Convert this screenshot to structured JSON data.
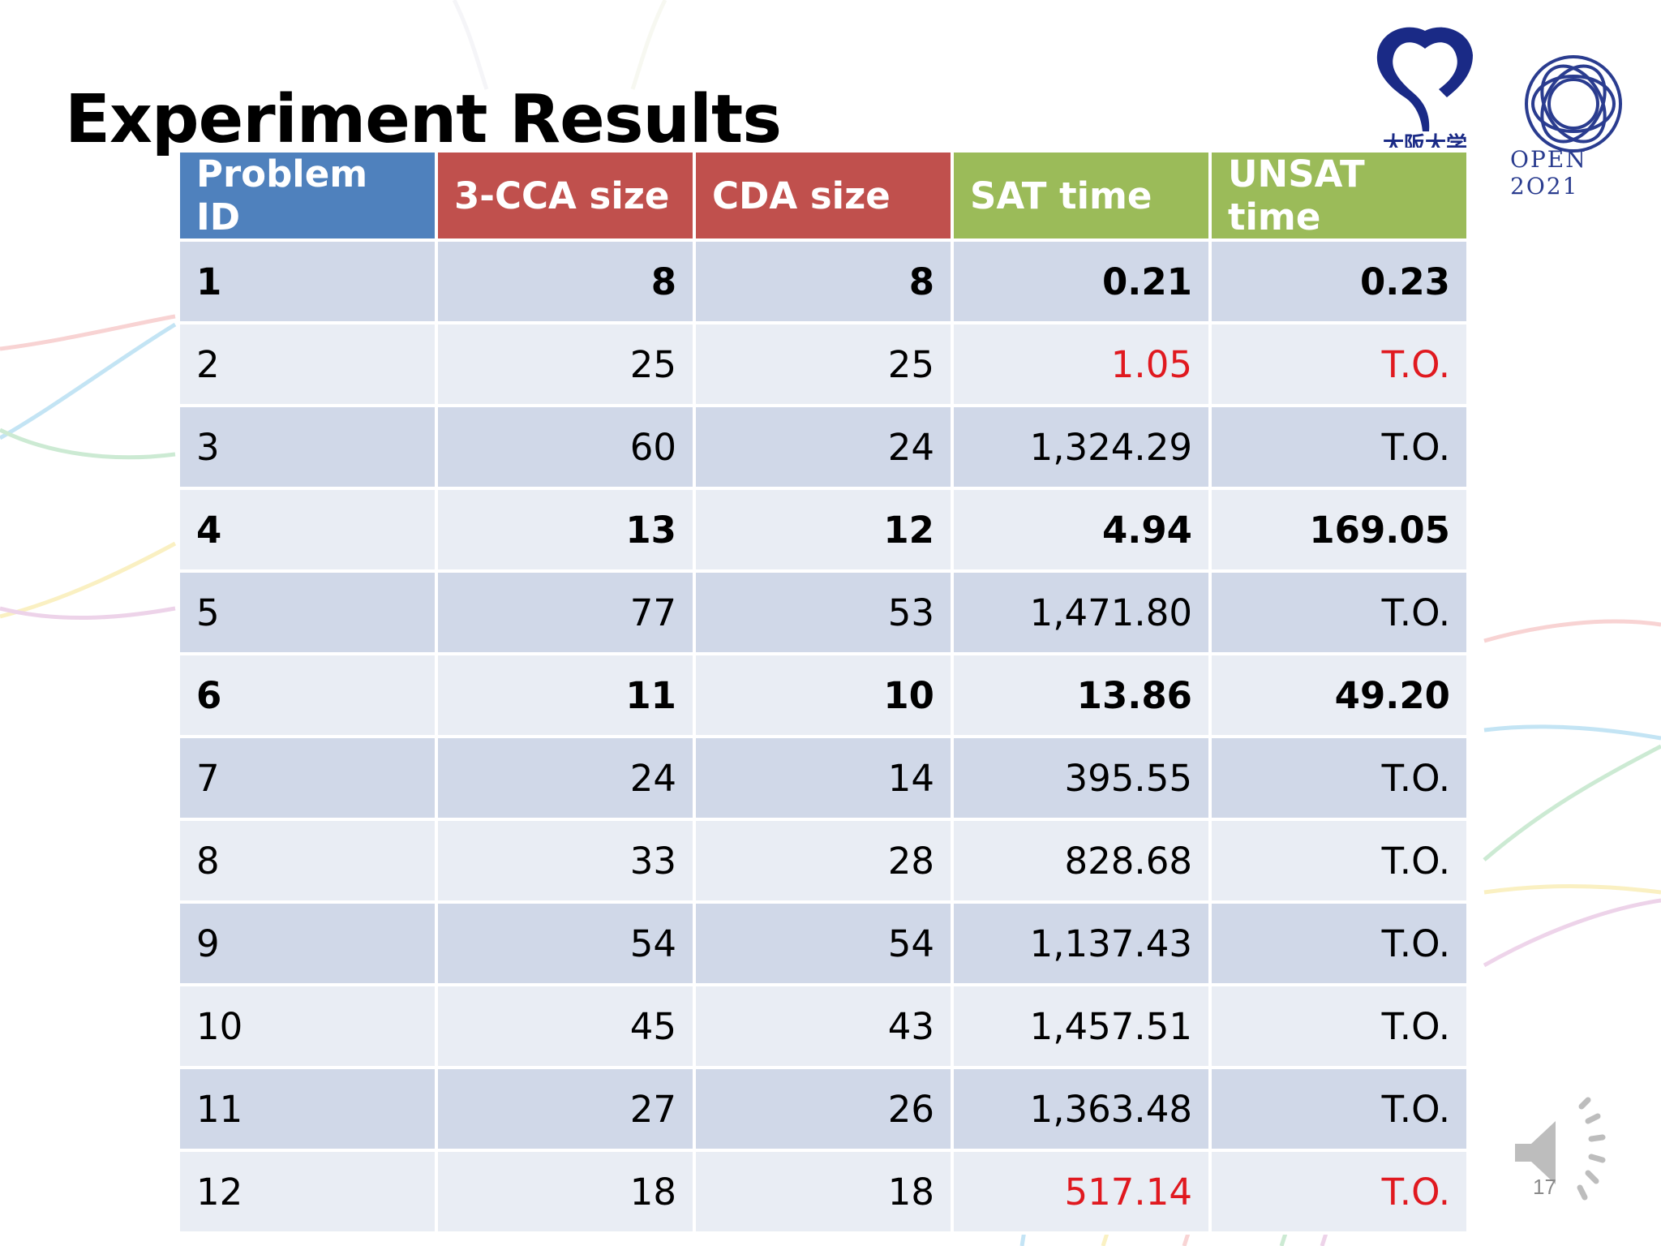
{
  "slide": {
    "title": "Experiment Results",
    "page_number": "17",
    "logos": {
      "university_text": "大阪大学",
      "open_text": "OPEN 2O21"
    }
  },
  "table": {
    "headers": [
      {
        "label": "Problem ID",
        "color": "#4f81bd"
      },
      {
        "label": "3-CCA size",
        "color": "#c0504d"
      },
      {
        "label": "CDA size",
        "color": "#c0504d"
      },
      {
        "label": "SAT time",
        "color": "#9bbb59"
      },
      {
        "label": "UNSAT time",
        "color": "#9bbb59"
      }
    ],
    "rows": [
      {
        "id": "1",
        "cca": "8",
        "cda": "8",
        "sat": "0.21",
        "unsat": "0.23",
        "bold": true
      },
      {
        "id": "2",
        "cca": "25",
        "cda": "25",
        "sat": "1.05",
        "unsat": "T.O.",
        "red": true
      },
      {
        "id": "3",
        "cca": "60",
        "cda": "24",
        "sat": "1,324.29",
        "unsat": "T.O."
      },
      {
        "id": "4",
        "cca": "13",
        "cda": "12",
        "sat": "4.94",
        "unsat": "169.05",
        "bold": true
      },
      {
        "id": "5",
        "cca": "77",
        "cda": "53",
        "sat": "1,471.80",
        "unsat": "T.O."
      },
      {
        "id": "6",
        "cca": "11",
        "cda": "10",
        "sat": "13.86",
        "unsat": "49.20",
        "bold": true
      },
      {
        "id": "7",
        "cca": "24",
        "cda": "14",
        "sat": "395.55",
        "unsat": "T.O."
      },
      {
        "id": "8",
        "cca": "33",
        "cda": "28",
        "sat": "828.68",
        "unsat": "T.O."
      },
      {
        "id": "9",
        "cca": "54",
        "cda": "54",
        "sat": "1,137.43",
        "unsat": "T.O."
      },
      {
        "id": "10",
        "cca": "45",
        "cda": "43",
        "sat": "1,457.51",
        "unsat": "T.O."
      },
      {
        "id": "11",
        "cca": "27",
        "cda": "26",
        "sat": "1,363.48",
        "unsat": "T.O."
      },
      {
        "id": "12",
        "cca": "18",
        "cda": "18",
        "sat": "517.14",
        "unsat": "T.O.",
        "red": true
      }
    ]
  },
  "colors": {
    "row_odd": "#d0d8e8",
    "row_even": "#e9edf4",
    "highlight_red": "#e0191f"
  },
  "icons": {
    "audio": "speaker-icon"
  }
}
